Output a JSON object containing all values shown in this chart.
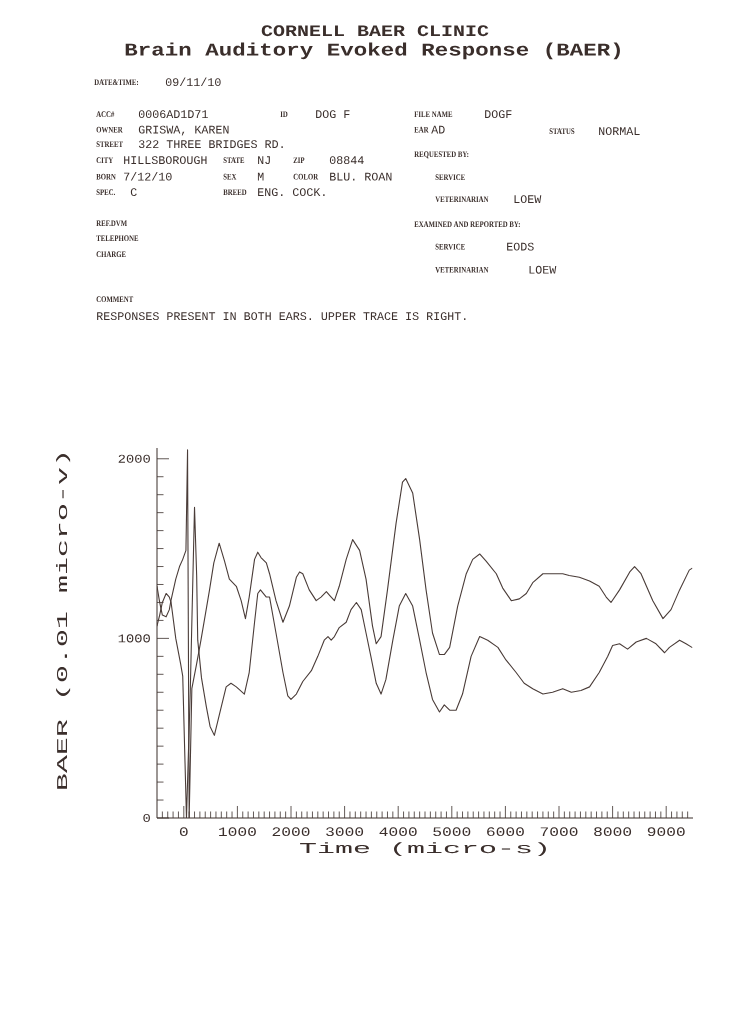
{
  "chart_data": {
    "type": "line",
    "title": "CORNELL BAER CLINIC",
    "subtitle": "Brain Auditory Evoked Response (BAER)",
    "xlabel": "Time (micro-s)",
    "ylabel": "BAER (0.01 micro-v)",
    "xlim": [
      -500,
      9500
    ],
    "ylim": [
      0,
      2060
    ],
    "xticks": [
      {
        "value": -400,
        "label": null
      },
      {
        "value": -300,
        "label": null
      },
      {
        "value": -200,
        "label": null
      },
      {
        "value": -100,
        "label": null
      },
      0,
      {
        "value": 100,
        "label": null
      },
      {
        "value": 200,
        "label": null
      },
      {
        "value": 300,
        "label": null
      },
      {
        "value": 400,
        "label": null
      },
      {
        "value": 500,
        "label": null
      },
      {
        "value": 600,
        "label": null
      },
      {
        "value": 700,
        "label": null
      },
      {
        "value": 800,
        "label": null
      },
      {
        "value": 900,
        "label": null
      },
      1000,
      {
        "value": 1100,
        "label": null
      },
      {
        "value": 1200,
        "label": null
      },
      {
        "value": 1300,
        "label": null
      },
      {
        "value": 1400,
        "label": null
      },
      {
        "value": 1500,
        "label": null
      },
      {
        "value": 1600,
        "label": null
      },
      {
        "value": 1700,
        "label": null
      },
      {
        "value": 1800,
        "label": null
      },
      {
        "value": 1900,
        "label": null
      },
      2000,
      {
        "value": 2100,
        "label": null
      },
      {
        "value": 2200,
        "label": null
      },
      {
        "value": 2300,
        "label": null
      },
      {
        "value": 2400,
        "label": null
      },
      {
        "value": 2500,
        "label": null
      },
      {
        "value": 2600,
        "label": null
      },
      {
        "value": 2700,
        "label": null
      },
      {
        "value": 2800,
        "label": null
      },
      {
        "value": 2900,
        "label": null
      },
      3000,
      {
        "value": 3100,
        "label": null
      },
      {
        "value": 3200,
        "label": null
      },
      {
        "value": 3300,
        "label": null
      },
      {
        "value": 3400,
        "label": null
      },
      {
        "value": 3500,
        "label": null
      },
      {
        "value": 3600,
        "label": null
      },
      {
        "value": 3700,
        "label": null
      },
      {
        "value": 3800,
        "label": null
      },
      {
        "value": 3900,
        "label": null
      },
      4000,
      {
        "value": 4100,
        "label": null
      },
      {
        "value": 4200,
        "label": null
      },
      {
        "value": 4300,
        "label": null
      },
      {
        "value": 4400,
        "label": null
      },
      {
        "value": 4500,
        "label": null
      },
      {
        "value": 4600,
        "label": null
      },
      {
        "value": 4700,
        "label": null
      },
      {
        "value": 4800,
        "label": null
      },
      {
        "value": 4900,
        "label": null
      },
      5000,
      {
        "value": 5100,
        "label": null
      },
      {
        "value": 5200,
        "label": null
      },
      {
        "value": 5300,
        "label": null
      },
      {
        "value": 5400,
        "label": null
      },
      {
        "value": 5500,
        "label": null
      },
      {
        "value": 5600,
        "label": null
      },
      {
        "value": 5700,
        "label": null
      },
      {
        "value": 5800,
        "label": null
      },
      {
        "value": 5900,
        "label": null
      },
      6000,
      {
        "value": 6100,
        "label": null
      },
      {
        "value": 6200,
        "label": null
      },
      {
        "value": 6300,
        "label": null
      },
      {
        "value": 6400,
        "label": null
      },
      {
        "value": 6500,
        "label": null
      },
      {
        "value": 6600,
        "label": null
      },
      {
        "value": 6700,
        "label": null
      },
      {
        "value": 6800,
        "label": null
      },
      {
        "value": 6900,
        "label": null
      },
      7000,
      {
        "value": 7100,
        "label": null
      },
      {
        "value": 7200,
        "label": null
      },
      {
        "value": 7300,
        "label": null
      },
      {
        "value": 7400,
        "label": null
      },
      {
        "value": 7500,
        "label": null
      },
      {
        "value": 7600,
        "label": null
      },
      {
        "value": 7700,
        "label": null
      },
      {
        "value": 7800,
        "label": null
      },
      {
        "value": 7900,
        "label": null
      },
      8000,
      {
        "value": 8100,
        "label": null
      },
      {
        "value": 8200,
        "label": null
      },
      {
        "value": 8300,
        "label": null
      },
      {
        "value": 8400,
        "label": null
      },
      {
        "value": 8500,
        "label": null
      },
      {
        "value": 8600,
        "label": null
      },
      {
        "value": 8700,
        "label": null
      },
      {
        "value": 8800,
        "label": null
      },
      {
        "value": 8900,
        "label": null
      },
      9000,
      {
        "value": 9100,
        "label": null
      },
      {
        "value": 9200,
        "label": null
      },
      {
        "value": 9300,
        "label": null
      },
      {
        "value": 9400,
        "label": null
      }
    ],
    "yticks": [
      0,
      {
        "value": 100,
        "label": null
      },
      {
        "value": 200,
        "label": null
      },
      {
        "value": 300,
        "label": null
      },
      {
        "value": 400,
        "label": null
      },
      {
        "value": 500,
        "label": null
      },
      {
        "value": 600,
        "label": null
      },
      {
        "value": 700,
        "label": null
      },
      {
        "value": 800,
        "label": null
      },
      {
        "value": 900,
        "label": null
      },
      1000,
      {
        "value": 1100,
        "label": null
      },
      {
        "value": 1200,
        "label": null
      },
      {
        "value": 1300,
        "label": null
      },
      {
        "value": 1400,
        "label": null
      },
      {
        "value": 1500,
        "label": null
      },
      {
        "value": 1600,
        "label": null
      },
      {
        "value": 1700,
        "label": null
      },
      {
        "value": 1800,
        "label": null
      },
      {
        "value": 1900,
        "label": null
      },
      2000
    ],
    "series": [
      {
        "color": "#4a3c38",
        "x": [
          -500,
          -450,
          -400,
          -330,
          -270,
          -240,
          -150,
          -80,
          -20,
          40,
          70,
          100,
          150,
          240,
          320,
          400,
          480,
          560,
          660,
          760,
          850,
          980,
          1070,
          1150,
          1220,
          1320,
          1380,
          1440,
          1540,
          1600,
          1720,
          1850,
          1970,
          2100,
          2160,
          2220,
          2340,
          2470,
          2560,
          2660,
          2720,
          2810,
          2900,
          3030,
          3150,
          3280,
          3400,
          3520,
          3590,
          3680,
          3800,
          3960,
          4080,
          4140,
          4270,
          4400,
          4520,
          4640,
          4770,
          4860,
          4960,
          5110,
          5270,
          5390,
          5520,
          5640,
          5830,
          5950,
          6110,
          6260,
          6390,
          6510,
          6700,
          6880,
          7070,
          7190,
          7380,
          7570,
          7750,
          7880,
          7970,
          8130,
          8320,
          8410,
          8530,
          8750,
          8940,
          9090,
          9250,
          9430,
          9480
        ],
        "values": [
          1290,
          1200,
          1130,
          1120,
          1160,
          1210,
          1330,
          1400,
          1440,
          1490,
          2050,
          0,
          720,
          860,
          990,
          1130,
          1270,
          1420,
          1530,
          1430,
          1330,
          1290,
          1210,
          1110,
          1230,
          1440,
          1480,
          1450,
          1420,
          1360,
          1210,
          1090,
          1180,
          1340,
          1370,
          1360,
          1270,
          1210,
          1230,
          1260,
          1240,
          1210,
          1290,
          1440,
          1550,
          1490,
          1330,
          1070,
          970,
          1010,
          1270,
          1640,
          1870,
          1890,
          1810,
          1550,
          1270,
          1030,
          910,
          910,
          950,
          1180,
          1360,
          1440,
          1470,
          1430,
          1360,
          1280,
          1210,
          1220,
          1250,
          1310,
          1360,
          1360,
          1360,
          1350,
          1340,
          1320,
          1290,
          1230,
          1200,
          1270,
          1370,
          1400,
          1360,
          1210,
          1110,
          1160,
          1270,
          1380,
          1390
        ]
      },
      {
        "color": "#4a3c38",
        "x": [
          -500,
          -450,
          -400,
          -330,
          -270,
          -237,
          -150,
          -60,
          -20,
          50,
          120,
          200,
          240,
          260,
          330,
          420,
          490,
          570,
          700,
          790,
          880,
          980,
          1130,
          1220,
          1320,
          1380,
          1430,
          1540,
          1600,
          1720,
          1850,
          1940,
          2000,
          2100,
          2220,
          2380,
          2500,
          2620,
          2690,
          2750,
          2810,
          2900,
          3030,
          3120,
          3220,
          3310,
          3400,
          3490,
          3590,
          3680,
          3770,
          3900,
          4020,
          4140,
          4270,
          4400,
          4520,
          4640,
          4770,
          4860,
          4960,
          5080,
          5200,
          5360,
          5520,
          5670,
          5860,
          6010,
          6200,
          6350,
          6510,
          6700,
          6880,
          7070,
          7230,
          7410,
          7570,
          7750,
          7910,
          8000,
          8130,
          8280,
          8440,
          8630,
          8810,
          8970,
          9060,
          9250,
          9370,
          9480
        ],
        "values": [
          1070,
          1130,
          1200,
          1250,
          1230,
          1200,
          1000,
          860,
          790,
          0,
          700,
          1730,
          1350,
          990,
          780,
          620,
          510,
          460,
          620,
          730,
          750,
          730,
          690,
          810,
          1090,
          1250,
          1270,
          1230,
          1230,
          1030,
          810,
          680,
          660,
          690,
          760,
          820,
          900,
          990,
          1010,
          990,
          1010,
          1060,
          1090,
          1160,
          1200,
          1160,
          1030,
          900,
          750,
          690,
          770,
          990,
          1180,
          1250,
          1180,
          990,
          810,
          660,
          590,
          630,
          600,
          600,
          690,
          900,
          1010,
          990,
          950,
          880,
          810,
          750,
          720,
          690,
          700,
          720,
          700,
          710,
          730,
          810,
          900,
          960,
          970,
          940,
          980,
          1000,
          970,
          920,
          950,
          990,
          970,
          950
        ]
      }
    ],
    "annotations": [
      "DATE&TIME:",
      "09/11/10",
      "ACC#",
      "0006AD1D71",
      "ID",
      "DOG F",
      "FILE NAME",
      "DOGF",
      "OWNER",
      "GRISWA, KAREN",
      "EAR",
      "AD",
      "STATUS",
      "NORMAL",
      "STREET",
      "322 THREE BRIDGES RD.",
      "CITY",
      "HILLSBOROUGH",
      "STATE",
      "NJ",
      "ZIP",
      "08844",
      "REQUESTED BY:",
      "BORN",
      "7/12/10",
      "SEX",
      "M",
      "COLOR",
      "BLU. ROAN",
      "SERVICE",
      "SPEC.",
      "C",
      "BREED",
      "ENG. COCK.",
      "VETERINARIAN",
      "LOEW",
      "REF.DVM",
      "EXAMINED AND REPORTED BY:",
      "TELEPHONE",
      "SERVICE",
      "EODS",
      "CHARGE",
      "VETERINARIAN",
      "LOEW",
      "COMMENT",
      "RESPONSES PRESENT IN BOTH EARS. UPPER TRACE IS RIGHT."
    ]
  }
}
